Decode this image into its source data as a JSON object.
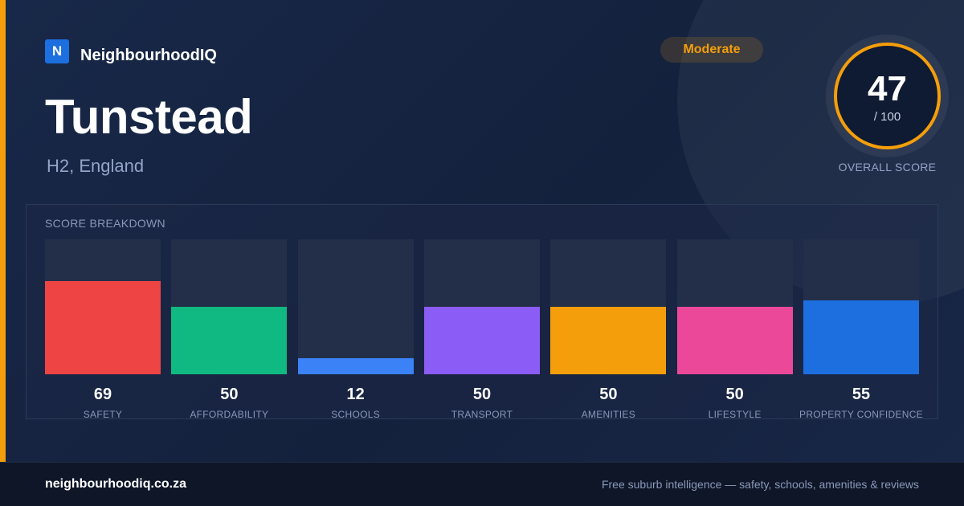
{
  "brand": {
    "logo_letter": "N",
    "name": "NeighbourhoodIQ",
    "logo_color": "#1d6fe0"
  },
  "suburb": {
    "name": "Tunstead",
    "location": "H2, England"
  },
  "rating": {
    "label": "Moderate",
    "color": "#f59e0b"
  },
  "overall": {
    "score": "47",
    "out_of": "/ 100",
    "caption": "OVERALL SCORE"
  },
  "breakdown": {
    "title": "SCORE BREAKDOWN",
    "max": 100,
    "items": [
      {
        "label": "SAFETY",
        "value": 69,
        "color": "#ef4444"
      },
      {
        "label": "AFFORDABILITY",
        "value": 50,
        "color": "#10b981"
      },
      {
        "label": "SCHOOLS",
        "value": 12,
        "color": "#3b82f6"
      },
      {
        "label": "TRANSPORT",
        "value": 50,
        "color": "#8b5cf6"
      },
      {
        "label": "AMENITIES",
        "value": 50,
        "color": "#f59e0b"
      },
      {
        "label": "LIFESTYLE",
        "value": 50,
        "color": "#ec4899"
      },
      {
        "label": "PROPERTY CONFIDENCE",
        "value": 55,
        "color": "#1d6fe0"
      }
    ]
  },
  "footer": {
    "url": "neighbourhoodiq.co.za",
    "tagline": "Free suburb intelligence — safety, schools, amenities & reviews"
  }
}
